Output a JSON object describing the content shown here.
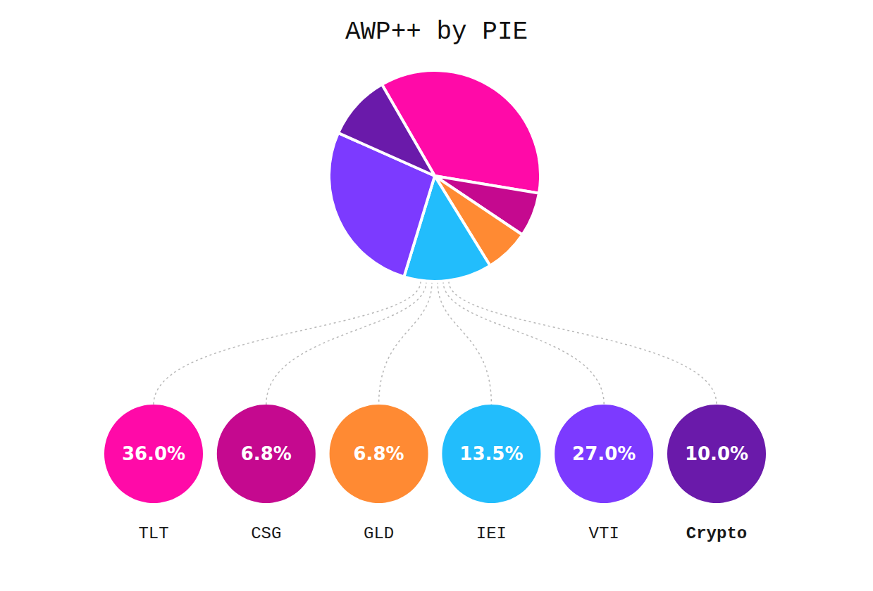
{
  "chart_data": {
    "type": "pie",
    "title": "AWP++ by PIE",
    "categories": [
      "TLT",
      "CSG",
      "GLD",
      "IEI",
      "VTI",
      "Crypto"
    ],
    "values": [
      36.0,
      6.8,
      6.8,
      13.5,
      27.0,
      10.0
    ],
    "value_labels": [
      "36.0%",
      "6.8%",
      "6.8%",
      "13.5%",
      "27.0%",
      "10.0%"
    ],
    "colors": [
      "#ff0aa8",
      "#c5098f",
      "#ff8a33",
      "#22bdfc",
      "#7c3aff",
      "#6a1aaa"
    ],
    "data_labels": true
  }
}
